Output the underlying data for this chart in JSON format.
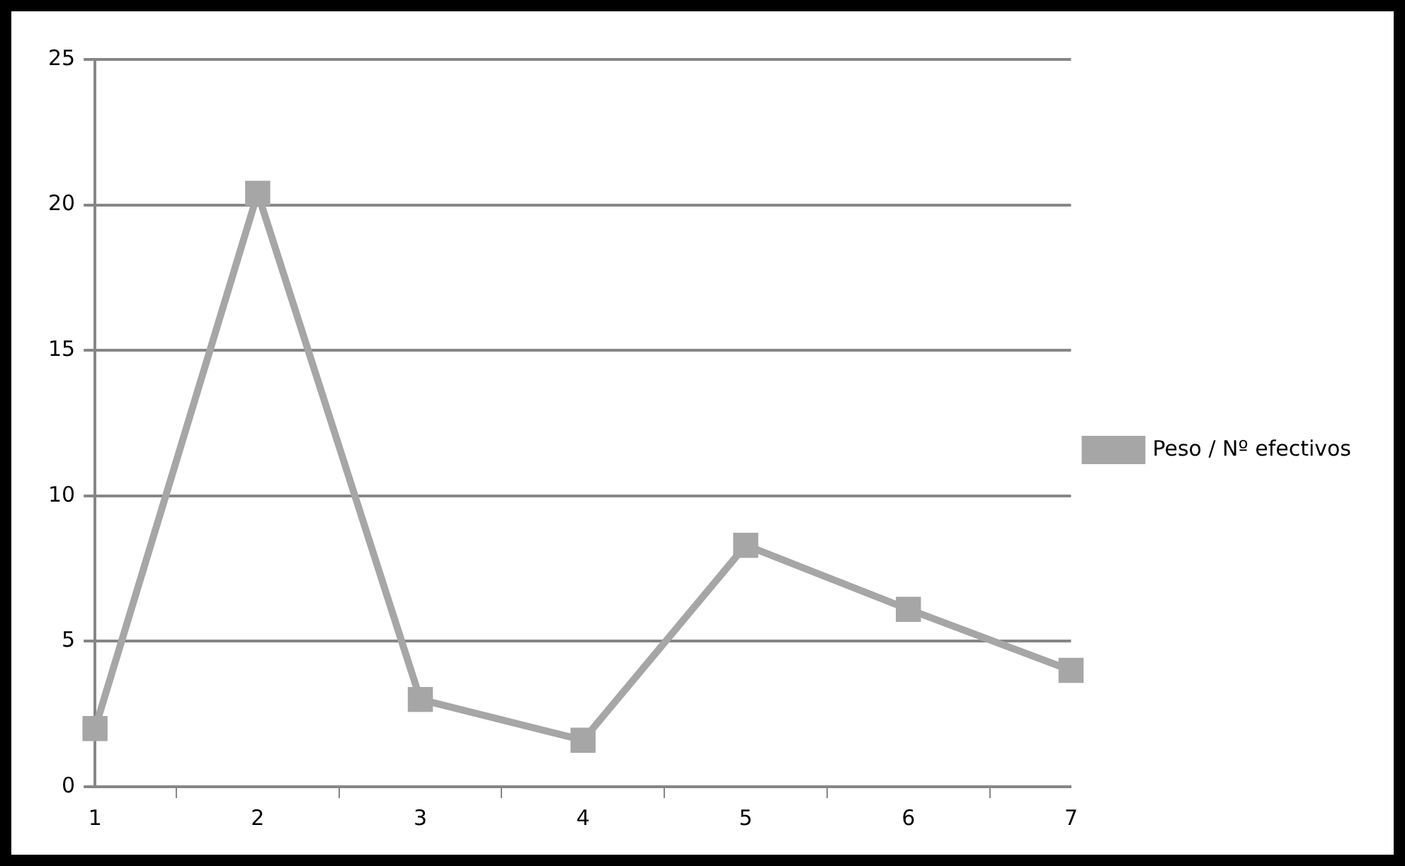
{
  "chart_data": {
    "type": "line",
    "categories": [
      "1",
      "2",
      "3",
      "4",
      "5",
      "6",
      "7"
    ],
    "series": [
      {
        "name": "Peso / Nº efectivos",
        "color": "#a6a6a6",
        "values": [
          2.0,
          20.4,
          3.0,
          1.6,
          8.3,
          6.1,
          4.0
        ]
      }
    ],
    "ylim": [
      0,
      25
    ],
    "yticks": [
      0,
      5,
      10,
      15,
      20,
      25
    ],
    "grid": "y",
    "legend": "right",
    "marker": "square",
    "line_style": "solid"
  }
}
